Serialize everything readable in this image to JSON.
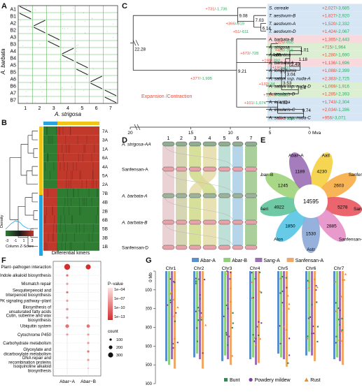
{
  "panel_letters": [
    "A",
    "B",
    "C",
    "D",
    "E",
    "F",
    "G"
  ],
  "panelA": {
    "ylabel": "A. barbata",
    "xlabel": "A. strigosa",
    "y_chroms": [
      "A1",
      "B1",
      "A2",
      "B2",
      "A3",
      "B3",
      "A4",
      "B4",
      "A5",
      "B5",
      "A6",
      "B6",
      "A7",
      "B7"
    ],
    "x_chroms": [
      "1",
      "2",
      "3",
      "4",
      "5",
      "6",
      "7"
    ],
    "grid_color": "#5cb85c"
  },
  "panelB": {
    "rows": [
      "7A",
      "3A",
      "1A",
      "6A",
      "4A",
      "5A",
      "2A",
      "7B",
      "4B",
      "2B",
      "6B",
      "5B",
      "3B",
      "1B"
    ],
    "xlabel": "Differential kmers",
    "legend_title": "Density",
    "legend_sub": "Column Z-Score",
    "legend_ticks": [
      "-3",
      "-1",
      "1",
      "3"
    ],
    "colors": {
      "red": "#c0392b",
      "green": "#2e7d32",
      "black": "#1a1a1a",
      "bar_blue": "#29a3e0",
      "bar_yellow": "#f0c419"
    }
  },
  "panelC": {
    "axis_label": "Mya",
    "axis_ticks": [
      "20",
      "15",
      "10",
      "5",
      "0"
    ],
    "expansion_label": "Expansion /Contraction",
    "taxa": [
      {
        "name": "S. cereale",
        "exp": "+2,027",
        "con": "-3,685"
      },
      {
        "name": "T. aestivum-B",
        "exp": "+1,827",
        "con": "-2,920"
      },
      {
        "name": "T. aestivum-A",
        "exp": "+1,520",
        "con": "-2,332"
      },
      {
        "name": "T. aestivum-D",
        "exp": "+1,424",
        "con": "-2,067"
      },
      {
        "name": "A. barbata-B",
        "exp": "+1,365",
        "con": "-2,443"
      },
      {
        "name": "A. strigosa",
        "exp": "+715",
        "con": "-1,964"
      },
      {
        "name": "A. atlantica",
        "exp": "+1,280",
        "con": "-1,690"
      },
      {
        "name": "A. barbata-A",
        "exp": "+1,136",
        "con": "-1,696"
      },
      {
        "name": "A. longiglumis",
        "exp": "+1,088",
        "con": "-2,399"
      },
      {
        "name": "A. sativa ssp. nuda-A",
        "exp": "+2,383",
        "con": "-2,725"
      },
      {
        "name": "A. sativa ssp. nuda-D",
        "exp": "+1,069",
        "con": "-1,916"
      },
      {
        "name": "A. insularis-D",
        "exp": "+1,285",
        "con": "-2,393"
      },
      {
        "name": "A. eriantha",
        "exp": "+1,743",
        "con": "-2,304"
      },
      {
        "name": "A. insularis-C",
        "exp": "+2,034",
        "con": "-1,286"
      },
      {
        "name": "A. sativa ssp. nuda-C",
        "exp": "+956",
        "con": "-3,071"
      }
    ],
    "node_times": [
      "22.28",
      "9.08",
      "7.03",
      "6.14",
      "9.21",
      "4.86",
      "2.49",
      "1.01",
      "1.18",
      "3.04",
      "3.53",
      "1.4",
      "4.02",
      "0.74"
    ],
    "node_changes": [
      "+731/-1,736",
      "+366/-819",
      "+51/-611",
      "+377/-1,995",
      "+672/-728",
      "+325/-650",
      "+436/-366",
      "+199/-292",
      "+190/-231",
      "+132/-34",
      "+1,349/-2,112",
      "+101/-1,074",
      "+821/-2,614"
    ],
    "colors": {
      "green": "#27ae60",
      "red": "#e74c3c",
      "band_blue": "#d6e6f5",
      "band_pink": "#f7d9de",
      "band_green": "#dcefd2"
    }
  },
  "panelD": {
    "genomes": [
      "A. strigosa-AA",
      "Sanfensan-A",
      "A. barbata-A",
      "A. barbata-B",
      "Sanfensan-D"
    ],
    "chroms": [
      "1",
      "2",
      "3",
      "4",
      "5",
      "6",
      "7"
    ],
    "colors": [
      "#e3c1c6",
      "#c8c89a",
      "#c9d67a",
      "#e0d79a",
      "#a9d6c9",
      "#9dc7e0",
      "#8fbf7a"
    ]
  },
  "panelE": {
    "center_value": "14595",
    "petals": [
      {
        "name": "Aatl",
        "value": "4230",
        "color": "#f4d03f"
      },
      {
        "name": "Sanfensan–O",
        "value": "2603",
        "color": "#f7ad45"
      },
      {
        "name": "Sanfensan–C",
        "value": "5278",
        "color": "#e8545e"
      },
      {
        "name": "Sanfensan–A",
        "value": "2885",
        "color": "#e58fc6"
      },
      {
        "name": "Astr",
        "value": "1530",
        "color": "#8aa8d8"
      },
      {
        "name": "Alon",
        "value": "1850",
        "color": "#56c5e6"
      },
      {
        "name": "Aeri",
        "value": "4922",
        "color": "#5ec39b"
      },
      {
        "name": "Abar–B",
        "value": "1245",
        "color": "#9fd37a"
      },
      {
        "name": "Abar–A",
        "value": "1189",
        "color": "#9b6fb6"
      }
    ]
  },
  "panelF": {
    "pathways": [
      "Plant−pathogen interaction",
      "Indole alkaloid biosynthesis",
      "Mismatch repair",
      "Sesquiterpenoid and triterpenoid biosynthesis",
      "MAPK signaling pathway−plant",
      "Biosynthesis of unsaturated fatty acids",
      "Cutin, suberine and wax biosynthesis",
      "Ubiquitin system",
      "Cytochrome P450",
      "Carbohydrate metabolism",
      "Glyoxylate and dicarboxylate metabolism",
      "DNA repair and recombination proteins",
      "Isoquinoline alkaloid biosynthesis"
    ],
    "groups": [
      "Abar−A",
      "Abar−B"
    ],
    "pvalue_title": "P−value",
    "pvalue_ticks": [
      "1e−04",
      "1e−07",
      "1e−10",
      "1e−13"
    ],
    "count_title": "count",
    "count_ticks": [
      "100",
      "200",
      "300"
    ],
    "dot_color": "#e53935"
  },
  "panelG": {
    "legend": [
      {
        "name": "Abar-A",
        "color": "#5b8fc9"
      },
      {
        "name": "Abar-B",
        "color": "#8fd07a"
      },
      {
        "name": "Sang-A",
        "color": "#9b6fb6"
      },
      {
        "name": "Sanfensan-A",
        "color": "#f0a868"
      }
    ],
    "chroms": [
      "Chr1",
      "Chr2",
      "Chr3",
      "Chr4",
      "Chr5",
      "Chr6",
      "Chr7"
    ],
    "y_ticks": [
      "0 Mb",
      "100",
      "200",
      "300",
      "400",
      "500",
      "600"
    ],
    "markers": [
      {
        "name": "Bunt",
        "color": "#2e8b57"
      },
      {
        "name": "Powdery mildew",
        "color": "#7e3fa0"
      },
      {
        "name": "Rust",
        "color": "#f08a24"
      }
    ]
  }
}
